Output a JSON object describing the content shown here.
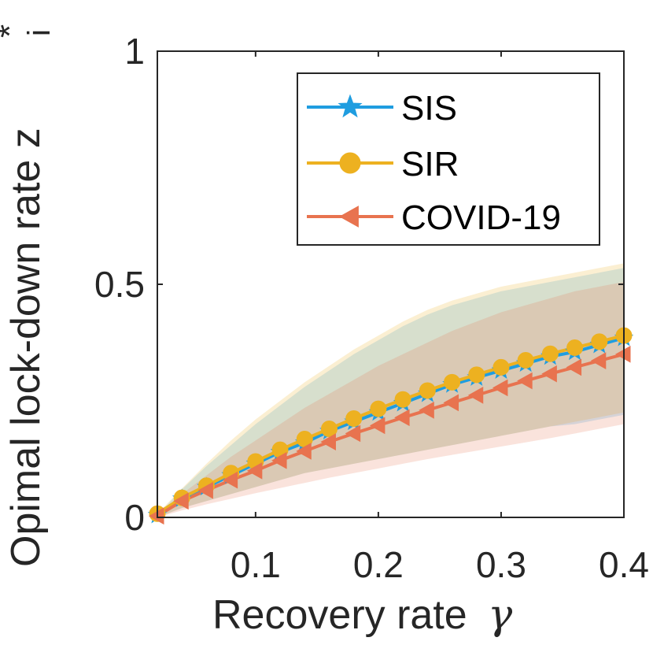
{
  "chart_data": {
    "type": "line",
    "title": "",
    "xlabel": "Recovery rate",
    "xlabel_symbol": "γ",
    "ylabel": "Opimal lock-down rate z",
    "ylabel_subscript": "i",
    "ylabel_superscript": "*",
    "xlim": [
      0.02,
      0.4
    ],
    "ylim": [
      0,
      1
    ],
    "xticks": [
      0.1,
      0.2,
      0.3,
      0.4
    ],
    "xtick_labels": [
      "0.1",
      "0.2",
      "0.3",
      "0.4"
    ],
    "yticks": [
      0,
      0.5,
      1
    ],
    "ytick_labels": [
      "0",
      "0.5",
      "1"
    ],
    "grid": false,
    "legend_position": "top-right",
    "x": [
      0.02,
      0.04,
      0.06,
      0.08,
      0.1,
      0.12,
      0.14,
      0.16,
      0.18,
      0.2,
      0.22,
      0.24,
      0.26,
      0.28,
      0.3,
      0.32,
      0.34,
      0.36,
      0.38,
      0.4
    ],
    "series": [
      {
        "name": "SIS",
        "color": "#1f9de0",
        "marker": "star",
        "values": [
          0.005,
          0.04,
          0.065,
          0.09,
          0.115,
          0.14,
          0.16,
          0.185,
          0.205,
          0.225,
          0.245,
          0.265,
          0.285,
          0.3,
          0.315,
          0.33,
          0.345,
          0.355,
          0.37,
          0.385
        ],
        "band_upper": [
          0.005,
          0.06,
          0.11,
          0.155,
          0.2,
          0.24,
          0.28,
          0.315,
          0.35,
          0.38,
          0.41,
          0.435,
          0.455,
          0.47,
          0.485,
          0.495,
          0.505,
          0.515,
          0.525,
          0.535
        ],
        "band_lower": [
          0.0,
          0.02,
          0.035,
          0.05,
          0.065,
          0.08,
          0.095,
          0.105,
          0.115,
          0.125,
          0.135,
          0.145,
          0.155,
          0.165,
          0.175,
          0.185,
          0.195,
          0.2,
          0.21,
          0.22
        ]
      },
      {
        "name": "SIR",
        "color": "#edb120",
        "marker": "circle",
        "values": [
          0.008,
          0.042,
          0.068,
          0.095,
          0.12,
          0.145,
          0.168,
          0.19,
          0.212,
          0.233,
          0.253,
          0.272,
          0.29,
          0.306,
          0.322,
          0.337,
          0.351,
          0.364,
          0.377,
          0.39
        ],
        "band_upper": [
          0.008,
          0.062,
          0.115,
          0.165,
          0.21,
          0.25,
          0.29,
          0.325,
          0.36,
          0.39,
          0.42,
          0.445,
          0.465,
          0.48,
          0.495,
          0.505,
          0.515,
          0.525,
          0.535,
          0.545
        ],
        "band_lower": [
          0.0,
          0.02,
          0.035,
          0.05,
          0.065,
          0.08,
          0.095,
          0.105,
          0.115,
          0.125,
          0.135,
          0.145,
          0.155,
          0.165,
          0.175,
          0.185,
          0.195,
          0.205,
          0.215,
          0.225
        ]
      },
      {
        "name": "COVID-19",
        "color": "#e8734f",
        "marker": "triangle-left",
        "values": [
          0.003,
          0.035,
          0.058,
          0.08,
          0.1,
          0.122,
          0.142,
          0.162,
          0.18,
          0.197,
          0.214,
          0.23,
          0.246,
          0.262,
          0.278,
          0.293,
          0.308,
          0.322,
          0.336,
          0.35
        ],
        "band_upper": [
          0.003,
          0.05,
          0.09,
          0.13,
          0.165,
          0.2,
          0.235,
          0.265,
          0.295,
          0.325,
          0.35,
          0.375,
          0.4,
          0.42,
          0.44,
          0.455,
          0.47,
          0.485,
          0.495,
          0.505
        ],
        "band_lower": [
          0.0,
          0.015,
          0.028,
          0.04,
          0.052,
          0.063,
          0.074,
          0.085,
          0.095,
          0.105,
          0.115,
          0.125,
          0.134,
          0.143,
          0.152,
          0.161,
          0.17,
          0.18,
          0.19,
          0.2
        ]
      }
    ]
  }
}
